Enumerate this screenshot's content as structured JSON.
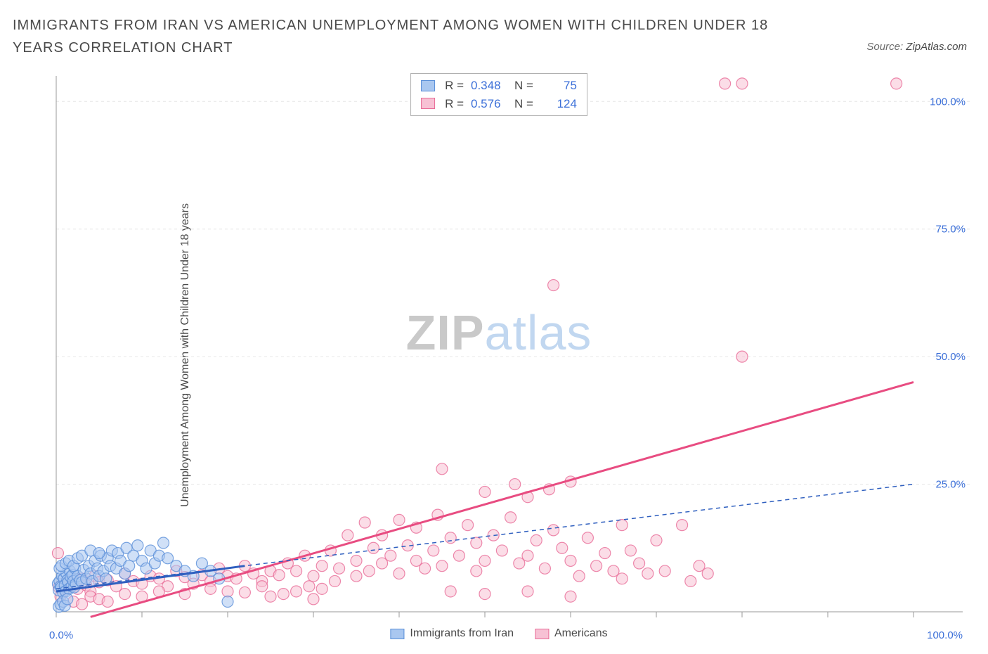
{
  "title": "IMMIGRANTS FROM IRAN VS AMERICAN UNEMPLOYMENT AMONG WOMEN WITH CHILDREN UNDER 18 YEARS CORRELATION CHART",
  "source": {
    "label": "Source:",
    "name": "ZipAtlas.com"
  },
  "watermark": {
    "zip": "ZIP",
    "atlas": "atlas"
  },
  "chart": {
    "type": "scatter",
    "background_color": "#ffffff",
    "grid_color": "#e6e6e6",
    "axis_line_color": "#9a9a9a",
    "tick_color": "#9a9a9a",
    "tick_label_color": "#3b6fd8",
    "y_axis_label": "Unemployment Among Women with Children Under 18 years",
    "xlim": [
      0,
      100
    ],
    "ylim": [
      0,
      105
    ],
    "x_origin_label": "0.0%",
    "x_max_label": "100.0%",
    "x_ticks": [
      0,
      10,
      20,
      30,
      40,
      50,
      60,
      70,
      80,
      90,
      100
    ],
    "y_ticks": [
      25,
      50,
      75,
      100
    ],
    "y_tick_labels": [
      "25.0%",
      "50.0%",
      "75.0%",
      "100.0%"
    ],
    "series": [
      {
        "key": "iran",
        "label": "Immigrants from Iran",
        "color_fill": "#a9c7f0",
        "color_stroke": "#5a8fd8",
        "marker_radius": 8,
        "marker_opacity": 0.55,
        "trend": {
          "x1": 0,
          "y1": 4.5,
          "x2": 100,
          "y2": 25,
          "dash": "6 5",
          "width": 1.5,
          "color": "#2f5fbf"
        },
        "trend_solid": {
          "x1": 0,
          "y1": 4,
          "x2": 22,
          "y2": 9,
          "width": 3,
          "color": "#2f5fbf"
        },
        "R": "0.348",
        "N": "75",
        "points": [
          [
            0.2,
            5.5
          ],
          [
            0.3,
            4.2
          ],
          [
            0.4,
            6.0
          ],
          [
            0.5,
            5.0
          ],
          [
            0.6,
            4.8
          ],
          [
            0.7,
            7.0
          ],
          [
            0.8,
            3.8
          ],
          [
            0.9,
            6.5
          ],
          [
            1.0,
            5.2
          ],
          [
            1.1,
            4.0
          ],
          [
            1.2,
            7.5
          ],
          [
            1.3,
            6.2
          ],
          [
            1.4,
            5.8
          ],
          [
            1.5,
            4.5
          ],
          [
            1.6,
            8.0
          ],
          [
            1.7,
            6.8
          ],
          [
            1.8,
            5.0
          ],
          [
            1.9,
            7.2
          ],
          [
            2.0,
            6.0
          ],
          [
            2.1,
            4.8
          ],
          [
            2.2,
            8.5
          ],
          [
            2.3,
            5.5
          ],
          [
            2.5,
            7.0
          ],
          [
            2.8,
            6.2
          ],
          [
            3.0,
            5.8
          ],
          [
            3.2,
            8.2
          ],
          [
            3.5,
            6.5
          ],
          [
            3.8,
            9.0
          ],
          [
            4.0,
            7.5
          ],
          [
            4.2,
            6.0
          ],
          [
            4.5,
            10.0
          ],
          [
            4.8,
            8.5
          ],
          [
            5.0,
            7.0
          ],
          [
            5.2,
            11.0
          ],
          [
            5.5,
            8.0
          ],
          [
            5.8,
            6.5
          ],
          [
            6.0,
            10.5
          ],
          [
            6.3,
            9.0
          ],
          [
            6.5,
            12.0
          ],
          [
            7.0,
            8.5
          ],
          [
            7.2,
            11.5
          ],
          [
            7.5,
            10.0
          ],
          [
            8.0,
            7.5
          ],
          [
            8.2,
            12.5
          ],
          [
            8.5,
            9.0
          ],
          [
            9.0,
            11.0
          ],
          [
            9.5,
            13.0
          ],
          [
            10.0,
            10.0
          ],
          [
            10.5,
            8.5
          ],
          [
            11.0,
            12.0
          ],
          [
            11.5,
            9.5
          ],
          [
            12.0,
            11.0
          ],
          [
            12.5,
            13.5
          ],
          [
            13.0,
            10.5
          ],
          [
            14.0,
            9.0
          ],
          [
            15.0,
            8.0
          ],
          [
            16.0,
            7.0
          ],
          [
            17.0,
            9.5
          ],
          [
            18.0,
            8.0
          ],
          [
            19.0,
            6.5
          ],
          [
            20.0,
            2.0
          ],
          [
            0.3,
            1.0
          ],
          [
            0.5,
            1.5
          ],
          [
            0.8,
            2.0
          ],
          [
            1.0,
            1.2
          ],
          [
            1.3,
            2.5
          ],
          [
            0.4,
            8.5
          ],
          [
            0.6,
            9.0
          ],
          [
            1.1,
            9.5
          ],
          [
            1.5,
            10.0
          ],
          [
            2.0,
            9.0
          ],
          [
            2.5,
            10.5
          ],
          [
            3.0,
            11.0
          ],
          [
            4.0,
            12.0
          ],
          [
            5.0,
            11.5
          ]
        ]
      },
      {
        "key": "americans",
        "label": "Americans",
        "color_fill": "#f7c1d4",
        "color_stroke": "#e86b97",
        "marker_radius": 8,
        "marker_opacity": 0.55,
        "trend": {
          "x1": 4,
          "y1": -1,
          "x2": 100,
          "y2": 45,
          "dash": null,
          "width": 3,
          "color": "#e84c81"
        },
        "R": "0.576",
        "N": "124",
        "points": [
          [
            0.2,
            11.5
          ],
          [
            0.3,
            4.8
          ],
          [
            0.5,
            3.0
          ],
          [
            0.8,
            5.5
          ],
          [
            1.0,
            4.2
          ],
          [
            1.5,
            6.0
          ],
          [
            2.0,
            5.0
          ],
          [
            2.5,
            4.5
          ],
          [
            3.0,
            6.5
          ],
          [
            3.5,
            5.2
          ],
          [
            4.0,
            4.0
          ],
          [
            4.5,
            7.0
          ],
          [
            5.0,
            5.8
          ],
          [
            6.0,
            6.2
          ],
          [
            7.0,
            5.0
          ],
          [
            8.0,
            7.5
          ],
          [
            9.0,
            6.0
          ],
          [
            10.0,
            5.5
          ],
          [
            11.0,
            7.0
          ],
          [
            12.0,
            6.5
          ],
          [
            13.0,
            5.0
          ],
          [
            14.0,
            8.0
          ],
          [
            15.0,
            6.8
          ],
          [
            16.0,
            5.5
          ],
          [
            17.0,
            7.2
          ],
          [
            18.0,
            6.0
          ],
          [
            19.0,
            8.5
          ],
          [
            20.0,
            7.0
          ],
          [
            21.0,
            6.5
          ],
          [
            22.0,
            9.0
          ],
          [
            23.0,
            7.5
          ],
          [
            24.0,
            6.0
          ],
          [
            25.0,
            8.0
          ],
          [
            26.0,
            7.2
          ],
          [
            26.5,
            3.5
          ],
          [
            27.0,
            9.5
          ],
          [
            28.0,
            4.0
          ],
          [
            28.0,
            8.0
          ],
          [
            29.0,
            11.0
          ],
          [
            29.5,
            5.0
          ],
          [
            30.0,
            7.0
          ],
          [
            31.0,
            4.5
          ],
          [
            31.0,
            9.0
          ],
          [
            32.0,
            12.0
          ],
          [
            32.5,
            6.0
          ],
          [
            33.0,
            8.5
          ],
          [
            34.0,
            15.0
          ],
          [
            35.0,
            10.0
          ],
          [
            35.0,
            7.0
          ],
          [
            36.0,
            17.5
          ],
          [
            36.5,
            8.0
          ],
          [
            37.0,
            12.5
          ],
          [
            38.0,
            9.5
          ],
          [
            38.0,
            15.0
          ],
          [
            39.0,
            11.0
          ],
          [
            40.0,
            7.5
          ],
          [
            40.0,
            18.0
          ],
          [
            41.0,
            13.0
          ],
          [
            42.0,
            10.0
          ],
          [
            42.0,
            16.5
          ],
          [
            43.0,
            8.5
          ],
          [
            44.0,
            12.0
          ],
          [
            44.5,
            19.0
          ],
          [
            45.0,
            28.0
          ],
          [
            45.0,
            9.0
          ],
          [
            46.0,
            14.5
          ],
          [
            46.0,
            4.0
          ],
          [
            47.0,
            11.0
          ],
          [
            48.0,
            17.0
          ],
          [
            49.0,
            13.5
          ],
          [
            49.0,
            8.0
          ],
          [
            50.0,
            23.5
          ],
          [
            50.0,
            10.0
          ],
          [
            51.0,
            15.0
          ],
          [
            52.0,
            12.0
          ],
          [
            53.0,
            18.5
          ],
          [
            53.5,
            25.0
          ],
          [
            54.0,
            9.5
          ],
          [
            55.0,
            11.0
          ],
          [
            55.0,
            22.5
          ],
          [
            56.0,
            14.0
          ],
          [
            57.0,
            8.5
          ],
          [
            57.5,
            24.0
          ],
          [
            58.0,
            16.0
          ],
          [
            59.0,
            12.5
          ],
          [
            60.0,
            10.0
          ],
          [
            60.0,
            25.5
          ],
          [
            61.0,
            7.0
          ],
          [
            62.0,
            14.5
          ],
          [
            63.0,
            9.0
          ],
          [
            64.0,
            11.5
          ],
          [
            65.0,
            8.0
          ],
          [
            66.0,
            17.0
          ],
          [
            66.0,
            6.5
          ],
          [
            67.0,
            12.0
          ],
          [
            68.0,
            9.5
          ],
          [
            69.0,
            7.5
          ],
          [
            70.0,
            14.0
          ],
          [
            71.0,
            8.0
          ],
          [
            73.0,
            17.0
          ],
          [
            74.0,
            6.0
          ],
          [
            75.0,
            9.0
          ],
          [
            76.0,
            7.5
          ],
          [
            80.0,
            50.0
          ],
          [
            58.0,
            64.0
          ],
          [
            78.0,
            103.5
          ],
          [
            80.0,
            103.5
          ],
          [
            98.0,
            103.5
          ],
          [
            2.0,
            2.0
          ],
          [
            3.0,
            1.5
          ],
          [
            4.0,
            3.0
          ],
          [
            5.0,
            2.5
          ],
          [
            6.0,
            2.0
          ],
          [
            8.0,
            3.5
          ],
          [
            10.0,
            3.0
          ],
          [
            12.0,
            4.0
          ],
          [
            15.0,
            3.5
          ],
          [
            18.0,
            4.5
          ],
          [
            20.0,
            4.0
          ],
          [
            25.0,
            3.0
          ],
          [
            30.0,
            2.5
          ],
          [
            22.0,
            3.8
          ],
          [
            24.0,
            5.0
          ],
          [
            50.0,
            3.5
          ],
          [
            55.0,
            4.0
          ],
          [
            60.0,
            3.0
          ]
        ]
      }
    ]
  },
  "legend_bottom": [
    {
      "key": "iran",
      "label": "Immigrants from Iran",
      "fill": "#a9c7f0",
      "stroke": "#5a8fd8"
    },
    {
      "key": "americans",
      "label": "Americans",
      "fill": "#f7c1d4",
      "stroke": "#e86b97"
    }
  ]
}
